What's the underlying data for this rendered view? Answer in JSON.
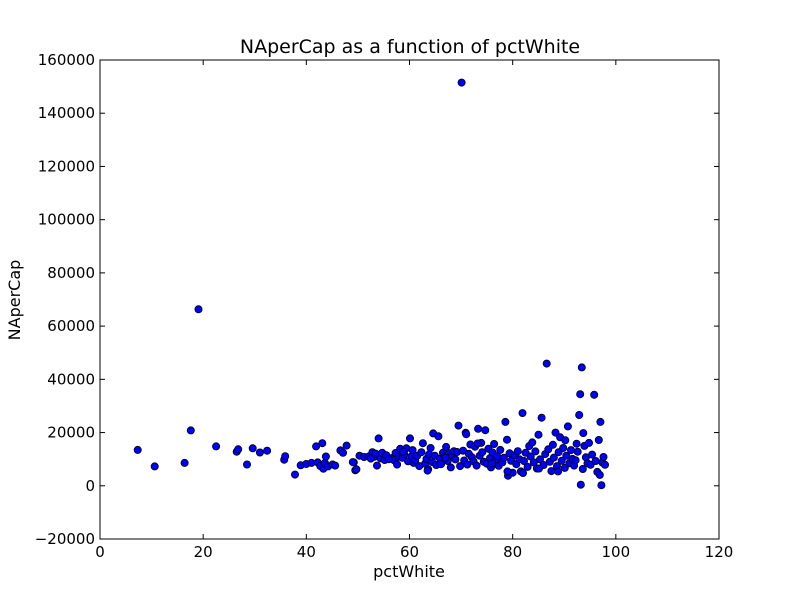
{
  "chart_data": {
    "type": "scatter",
    "title": "NAperCap as a function of pctWhite",
    "xlabel": "pctWhite",
    "ylabel": "NAperCap",
    "xlim": [
      0,
      120
    ],
    "ylim": [
      -20000,
      160000
    ],
    "xticks": [
      0,
      20,
      40,
      60,
      80,
      100,
      120
    ],
    "yticks": [
      -20000,
      0,
      20000,
      40000,
      60000,
      80000,
      100000,
      120000,
      140000,
      160000
    ],
    "grid": false,
    "marker_color": "#0000ff",
    "marker_edge_color": "#000000",
    "points": [
      [
        7.3,
        13500
      ],
      [
        10.6,
        7300
      ],
      [
        16.4,
        8600
      ],
      [
        17.6,
        20800
      ],
      [
        19.1,
        66300
      ],
      [
        22.5,
        14800
      ],
      [
        26.5,
        12800
      ],
      [
        26.8,
        13700
      ],
      [
        28.5,
        8000
      ],
      [
        29.6,
        14100
      ],
      [
        31.0,
        12500
      ],
      [
        32.4,
        13200
      ],
      [
        35.7,
        9800
      ],
      [
        35.9,
        11100
      ],
      [
        37.8,
        4200
      ],
      [
        38.9,
        7700
      ],
      [
        40.0,
        8200
      ],
      [
        41.0,
        8600
      ],
      [
        41.9,
        14800
      ],
      [
        42.2,
        8800
      ],
      [
        42.7,
        7400
      ],
      [
        43.1,
        16000
      ],
      [
        43.3,
        6400
      ],
      [
        43.6,
        8600
      ],
      [
        43.8,
        11000
      ],
      [
        44.2,
        7300
      ],
      [
        45.1,
        8000
      ],
      [
        45.6,
        7600
      ],
      [
        46.6,
        13300
      ],
      [
        47.1,
        12400
      ],
      [
        47.8,
        15100
      ],
      [
        49.2,
        8800
      ],
      [
        49.5,
        5800
      ],
      [
        49.7,
        6200
      ],
      [
        50.3,
        11300
      ],
      [
        51.2,
        10800
      ],
      [
        52.1,
        11000
      ],
      [
        52.8,
        12600
      ],
      [
        53.2,
        10900
      ],
      [
        53.4,
        12100
      ],
      [
        53.7,
        7600
      ],
      [
        54.0,
        17800
      ],
      [
        54.4,
        10300
      ],
      [
        54.7,
        12400
      ],
      [
        55.2,
        9700
      ],
      [
        55.5,
        11500
      ],
      [
        56.5,
        10400
      ],
      [
        57.0,
        9600
      ],
      [
        57.3,
        12300
      ],
      [
        57.6,
        8000
      ],
      [
        57.9,
        10900
      ],
      [
        58.2,
        13900
      ],
      [
        58.6,
        10500
      ],
      [
        59.0,
        11800
      ],
      [
        59.4,
        14100
      ],
      [
        59.7,
        9200
      ],
      [
        60.1,
        17800
      ],
      [
        60.4,
        11100
      ],
      [
        60.8,
        8600
      ],
      [
        61.1,
        9600
      ],
      [
        61.5,
        11300
      ],
      [
        61.9,
        7400
      ],
      [
        62.3,
        12600
      ],
      [
        62.6,
        16000
      ],
      [
        63.0,
        8300
      ],
      [
        63.3,
        10100
      ],
      [
        63.6,
        6200
      ],
      [
        63.8,
        11800
      ],
      [
        64.1,
        14200
      ],
      [
        64.4,
        8900
      ],
      [
        64.6,
        19700
      ],
      [
        64.9,
        11300
      ],
      [
        65.2,
        7800
      ],
      [
        65.6,
        18600
      ],
      [
        65.9,
        10200
      ],
      [
        66.1,
        8100
      ],
      [
        66.5,
        12400
      ],
      [
        66.8,
        11000
      ],
      [
        67.1,
        14600
      ],
      [
        67.4,
        9300
      ],
      [
        67.7,
        12200
      ],
      [
        68.0,
        6900
      ],
      [
        68.3,
        11500
      ],
      [
        68.6,
        13000
      ],
      [
        68.9,
        9900
      ],
      [
        69.2,
        12700
      ],
      [
        69.5,
        22600
      ],
      [
        69.8,
        7400
      ],
      [
        70.1,
        151500
      ],
      [
        70.4,
        13200
      ],
      [
        70.6,
        9500
      ],
      [
        70.9,
        19900
      ],
      [
        71.2,
        8000
      ],
      [
        71.5,
        12000
      ],
      [
        71.8,
        15500
      ],
      [
        72.1,
        10700
      ],
      [
        72.4,
        9200
      ],
      [
        72.7,
        14700
      ],
      [
        73.0,
        7600
      ],
      [
        73.3,
        21400
      ],
      [
        73.6,
        11300
      ],
      [
        73.9,
        16100
      ],
      [
        74.1,
        12600
      ],
      [
        74.4,
        9000
      ],
      [
        74.7,
        20900
      ],
      [
        75.0,
        8300
      ],
      [
        75.3,
        13900
      ],
      [
        75.6,
        10400
      ],
      [
        75.8,
        6900
      ],
      [
        76.1,
        12500
      ],
      [
        76.4,
        15700
      ],
      [
        76.7,
        9700
      ],
      [
        77.0,
        11100
      ],
      [
        77.3,
        7500
      ],
      [
        77.6,
        13500
      ],
      [
        78.0,
        8800
      ],
      [
        78.3,
        10500
      ],
      [
        78.6,
        24000
      ],
      [
        78.9,
        17300
      ],
      [
        79.1,
        3800
      ],
      [
        79.4,
        12200
      ],
      [
        79.7,
        9400
      ],
      [
        80.0,
        4900
      ],
      [
        80.4,
        11500
      ],
      [
        80.7,
        8100
      ],
      [
        81.0,
        13000
      ],
      [
        81.3,
        10000
      ],
      [
        81.6,
        5400
      ],
      [
        81.9,
        27300
      ],
      [
        82.2,
        9300
      ],
      [
        82.5,
        12400
      ],
      [
        82.9,
        7100
      ],
      [
        83.2,
        14900
      ],
      [
        83.5,
        11000
      ],
      [
        83.8,
        16300
      ],
      [
        84.1,
        8800
      ],
      [
        84.4,
        12900
      ],
      [
        84.7,
        6500
      ],
      [
        85.0,
        19200
      ],
      [
        85.3,
        9900
      ],
      [
        85.6,
        25600
      ],
      [
        86.0,
        7800
      ],
      [
        86.3,
        11900
      ],
      [
        86.6,
        45900
      ],
      [
        86.9,
        13700
      ],
      [
        87.2,
        9000
      ],
      [
        87.5,
        5500
      ],
      [
        87.8,
        15400
      ],
      [
        88.0,
        10600
      ],
      [
        88.3,
        20000
      ],
      [
        88.6,
        7400
      ],
      [
        88.9,
        12600
      ],
      [
        89.2,
        18200
      ],
      [
        89.5,
        9400
      ],
      [
        89.8,
        14200
      ],
      [
        90.1,
        6700
      ],
      [
        90.4,
        11300
      ],
      [
        90.7,
        22300
      ],
      [
        91.0,
        8500
      ],
      [
        91.3,
        13400
      ],
      [
        91.6,
        10100
      ],
      [
        91.9,
        7600
      ],
      [
        92.2,
        9600
      ],
      [
        92.6,
        12800
      ],
      [
        92.9,
        26600
      ],
      [
        93.1,
        34400
      ],
      [
        93.2,
        400
      ],
      [
        93.4,
        44500
      ],
      [
        93.6,
        6300
      ],
      [
        93.9,
        15000
      ],
      [
        94.2,
        10700
      ],
      [
        94.5,
        8400
      ],
      [
        94.8,
        16100
      ],
      [
        95.1,
        7900
      ],
      [
        95.4,
        11700
      ],
      [
        95.8,
        34200
      ],
      [
        96.1,
        9300
      ],
      [
        96.4,
        5200
      ],
      [
        96.7,
        17200
      ],
      [
        96.9,
        4100
      ],
      [
        97.0,
        24000
      ],
      [
        97.2,
        200
      ],
      [
        97.4,
        8700
      ],
      [
        97.6,
        10800
      ],
      [
        97.9,
        7900
      ],
      [
        93.7,
        19800
      ],
      [
        92.4,
        15800
      ],
      [
        90.2,
        17100
      ],
      [
        88.8,
        5400
      ],
      [
        85.1,
        6500
      ],
      [
        82.0,
        4800
      ],
      [
        79.0,
        5400
      ],
      [
        76.0,
        8400
      ],
      [
        73.2,
        15900
      ],
      [
        71.0,
        19400
      ],
      [
        67.0,
        10500
      ],
      [
        63.5,
        5700
      ],
      [
        60.6,
        13400
      ],
      [
        58.8,
        12800
      ],
      [
        56.0,
        10000
      ],
      [
        52.5,
        10200
      ],
      [
        49.0,
        8900
      ]
    ]
  }
}
